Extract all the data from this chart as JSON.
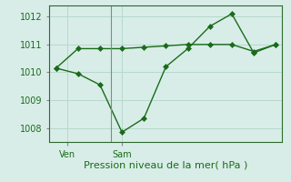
{
  "line1_x": [
    0,
    1,
    2,
    3,
    4,
    5,
    6,
    7,
    8,
    9,
    10
  ],
  "line1_y": [
    1010.15,
    1010.85,
    1010.85,
    1010.85,
    1010.9,
    1010.95,
    1011.0,
    1011.0,
    1011.0,
    1010.75,
    1011.0
  ],
  "line2_x": [
    0,
    1,
    2,
    3,
    4,
    5,
    6,
    7,
    8,
    9,
    10
  ],
  "line2_y": [
    1010.15,
    1009.95,
    1009.55,
    1007.85,
    1008.35,
    1010.2,
    1010.85,
    1011.65,
    1012.1,
    1010.7,
    1011.0
  ],
  "line_color": "#1a6b1a",
  "bg_color": "#d8ede8",
  "grid_color": "#b8d8cc",
  "xlabel": "Pression niveau de la mer( hPa )",
  "yticks": [
    1008,
    1009,
    1010,
    1011,
    1012
  ],
  "ylim": [
    1007.5,
    1012.4
  ],
  "xlim": [
    -0.3,
    10.3
  ],
  "ven_tick_x": 0.5,
  "sam_tick_x": 3.0,
  "ven_label": "Ven",
  "sam_label": "Sam",
  "vline_x": 2.5,
  "marker": "D",
  "markersize": 3,
  "linewidth": 1.0,
  "xlabel_fontsize": 8,
  "tick_fontsize": 7,
  "ylabel_color": "#1a6b1a",
  "vline_color": "#888888"
}
